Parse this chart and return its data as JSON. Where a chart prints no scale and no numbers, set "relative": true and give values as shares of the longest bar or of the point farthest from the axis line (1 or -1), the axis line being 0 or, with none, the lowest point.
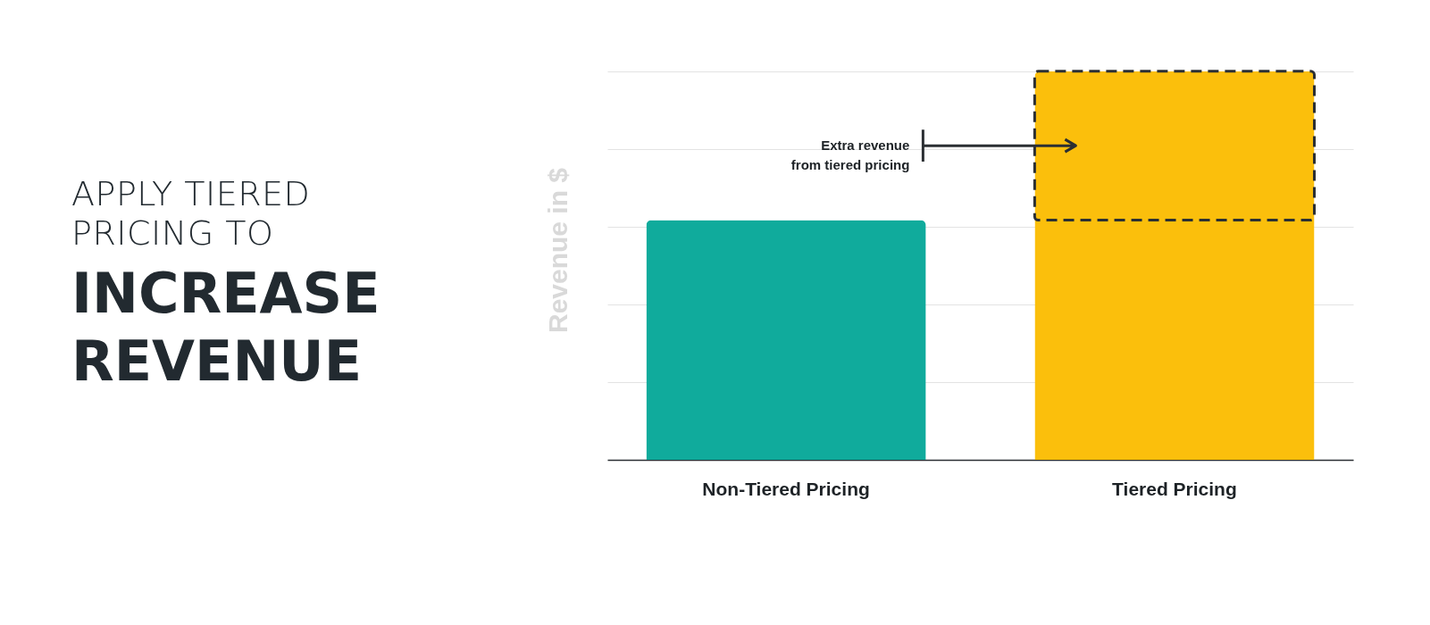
{
  "chart_data": {
    "type": "bar",
    "relative": true,
    "title": "APPLY TIERED PRICING TO",
    "subtitle": "INCREASE REVENUE",
    "ylabel": "Revenue in $",
    "categories": [
      "Non-Tiered Pricing",
      "Tiered Pricing"
    ],
    "values": [
      0.617,
      1
    ],
    "colors": [
      "#10ab9c",
      "#fbbf0c"
    ],
    "grid": "y",
    "annotations": [
      "Extra revenue\nfrom tiered pricing"
    ]
  }
}
